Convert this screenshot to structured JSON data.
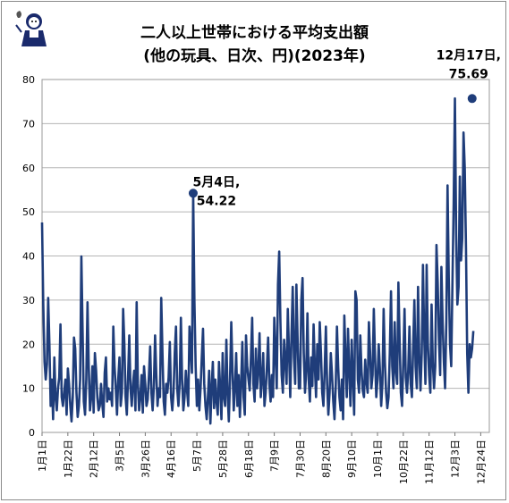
{
  "chart_data": {
    "type": "line",
    "title_line1": "二人以上世帯における平均支出額",
    "title_line2": "(他の玩具、日次、円)(2023年)",
    "ylim": [
      0,
      80
    ],
    "yticks": [
      0,
      10,
      20,
      30,
      40,
      50,
      60,
      70,
      80
    ],
    "x_ticks": [
      "1月1日",
      "1月22日",
      "2月12日",
      "3月5日",
      "3月26日",
      "4月16日",
      "5月7日",
      "5月28日",
      "6月18日",
      "7月9日",
      "7月30日",
      "8月20日",
      "9月10日",
      "10月1日",
      "10月22日",
      "11月12日",
      "12月3日",
      "12月24日"
    ],
    "grid": true,
    "line_color": "#1f3d7a",
    "annotations": [
      {
        "label_line1": "5月4日,",
        "label_line2": "54.22",
        "day_index": 123,
        "value": 54.22
      },
      {
        "label_line1": "12月17日,",
        "label_line2": "75.69",
        "day_index": 350,
        "value": 75.69
      }
    ],
    "series": [
      {
        "values": [
          47.6,
          29.0,
          16.0,
          12.0,
          15.5,
          30.5,
          20.0,
          6.0,
          12.0,
          3.0,
          17.0,
          8.0,
          5.0,
          10.0,
          12.5,
          24.5,
          8.0,
          6.0,
          9.0,
          12.0,
          4.0,
          14.5,
          11.0,
          6.0,
          2.5,
          8.0,
          21.5,
          19.0,
          9.0,
          3.5,
          6.0,
          12.0,
          39.9,
          23.0,
          7.0,
          4.0,
          12.0,
          29.5,
          15.0,
          5.0,
          8.0,
          15.0,
          4.5,
          18.0,
          14.0,
          8.0,
          5.0,
          6.0,
          11.0,
          6.5,
          3.5,
          13.5,
          17.0,
          7.0,
          10.0,
          7.5,
          9.0,
          6.0,
          24.0,
          15.0,
          10.0,
          4.0,
          12.0,
          17.0,
          6.0,
          9.0,
          28.0,
          20.0,
          8.0,
          4.0,
          12.5,
          22.0,
          10.0,
          6.0,
          11.0,
          14.0,
          5.0,
          29.5,
          11.0,
          5.0,
          8.0,
          13.0,
          4.5,
          15.0,
          11.0,
          6.0,
          7.5,
          13.0,
          19.5,
          9.0,
          5.0,
          10.5,
          22.0,
          13.0,
          6.0,
          10.0,
          8.0,
          30.5,
          18.0,
          7.0,
          4.0,
          11.0,
          9.0,
          12.5,
          20.5,
          8.0,
          5.0,
          9.0,
          18.0,
          24.0,
          10.0,
          6.0,
          11.0,
          26.0,
          12.0,
          5.0,
          8.0,
          14.0,
          9.5,
          6.0,
          24.0,
          19.0,
          13.5,
          54.2,
          30.0,
          15.0,
          6.0,
          12.0,
          5.0,
          10.0,
          17.0,
          23.5,
          11.0,
          6.0,
          3.0,
          8.0,
          14.0,
          2.0,
          10.0,
          16.0,
          5.5,
          12.0,
          7.0,
          4.0,
          16.0,
          10.0,
          3.0,
          18.0,
          8.0,
          6.0,
          21.0,
          9.0,
          2.5,
          12.0,
          25.0,
          14.0,
          5.0,
          10.0,
          18.0,
          6.0,
          13.0,
          3.5,
          11.0,
          20.5,
          8.0,
          4.0,
          22.0,
          15.0,
          12.0,
          9.5,
          17.0,
          26.0,
          11.0,
          7.0,
          19.0,
          10.0,
          14.0,
          22.5,
          8.0,
          12.0,
          18.0,
          6.0,
          9.0,
          15.0,
          21.5,
          11.0,
          7.0,
          13.0,
          8.0,
          26.0,
          18.0,
          10.0,
          33.5,
          41.0,
          25.0,
          13.0,
          9.0,
          21.0,
          16.0,
          11.0,
          28.0,
          18.0,
          8.0,
          22.0,
          33.0,
          17.0,
          11.0,
          33.5,
          21.0,
          10.0,
          10.0,
          30.0,
          35.0,
          18.0,
          9.0,
          14.0,
          27.0,
          12.0,
          7.0,
          17.0,
          10.5,
          24.5,
          15.0,
          8.0,
          20.0,
          12.0,
          25.0,
          18.0,
          9.0,
          6.0,
          14.0,
          24.0,
          11.0,
          4.0,
          9.0,
          18.0,
          13.0,
          7.0,
          3.0,
          10.5,
          24.0,
          15.0,
          8.0,
          5.0,
          12.0,
          3.0,
          26.5,
          17.0,
          8.0,
          23.5,
          14.0,
          6.0,
          21.0,
          12.0,
          4.0,
          32.0,
          30.0,
          12.0,
          9.0,
          22.0,
          14.0,
          9.5,
          8.0,
          16.5,
          11.5,
          9.0,
          25.0,
          18.0,
          10.0,
          13.0,
          28.0,
          17.0,
          8.0,
          12.0,
          20.0,
          14.0,
          6.0,
          11.0,
          28.0,
          16.0,
          9.0,
          5.5,
          8.0,
          18.0,
          32.0,
          15.0,
          10.0,
          25.0,
          14.0,
          11.0,
          34.0,
          21.0,
          9.0,
          6.0,
          16.0,
          28.0,
          12.5,
          9.0,
          14.0,
          24.0,
          11.0,
          8.0,
          19.0,
          30.0,
          15.0,
          10.0,
          33.0,
          17.0,
          9.5,
          18.0,
          38.0,
          22.0,
          11.0,
          38.0,
          20.0,
          13.0,
          9.0,
          29.0,
          16.0,
          10.0,
          15.0,
          42.5,
          34.0,
          21.0,
          13.0,
          37.5,
          25.0,
          16.0,
          10.0,
          25.0,
          56.0,
          35.0,
          20.0,
          15.0,
          34.0,
          52.0,
          75.7,
          45.0,
          29.0,
          33.0,
          58.0,
          39.0,
          44.0,
          68.0,
          60.0,
          42.0,
          18.0,
          9.0,
          20.0,
          17.0,
          19.0,
          23.0
        ]
      }
    ]
  }
}
